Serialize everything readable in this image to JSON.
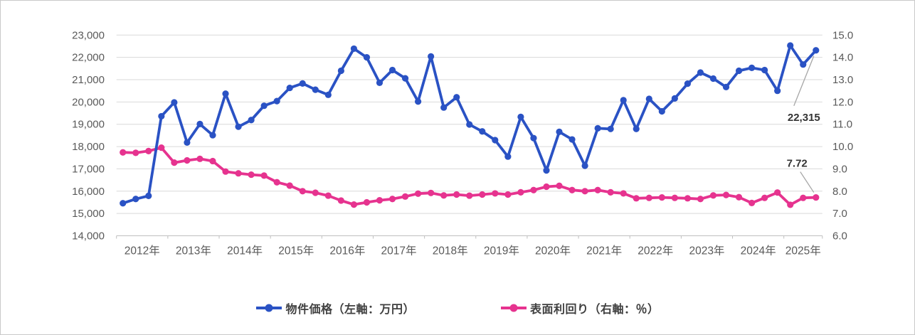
{
  "chart_data": {
    "type": "line",
    "title": "",
    "grid": "horizontal",
    "legend_position": "bottom",
    "x_year_labels": [
      "2012年",
      "2013年",
      "2014年",
      "2015年",
      "2016年",
      "2017年",
      "2018年",
      "2019年",
      "2020年",
      "2021年",
      "2022年",
      "2023年",
      "2024年",
      "2025年"
    ],
    "points_per_year": [
      4,
      4,
      4,
      4,
      4,
      4,
      4,
      4,
      4,
      4,
      4,
      4,
      4,
      3
    ],
    "left_axis": {
      "label": "万円",
      "min": 14000,
      "max": 23000,
      "step": 1000
    },
    "right_axis": {
      "label": "%",
      "min": 6.0,
      "max": 15.0,
      "step": 1.0
    },
    "series": [
      {
        "name": "物件価格（左軸：万円）",
        "axis": "left",
        "color": "#2a52c4",
        "values": [
          15460,
          15650,
          15790,
          19360,
          19980,
          18180,
          19010,
          18510,
          20370,
          18890,
          19190,
          19830,
          20040,
          20630,
          20830,
          20550,
          20320,
          21400,
          22390,
          22000,
          20860,
          21430,
          21060,
          20020,
          22040,
          19750,
          20210,
          18990,
          18680,
          18290,
          17550,
          19330,
          18380,
          16930,
          18660,
          18320,
          17140,
          18820,
          18790,
          20080,
          18790,
          20140,
          19580,
          20160,
          20820,
          21320,
          21050,
          20670,
          21400,
          21530,
          21430,
          20500,
          22530,
          21680,
          22315
        ]
      },
      {
        "name": "表面利回り（右軸：％）",
        "axis": "right",
        "color": "#e6338f",
        "values": [
          9.74,
          9.72,
          9.8,
          9.95,
          9.28,
          9.38,
          9.45,
          9.35,
          8.88,
          8.8,
          8.74,
          8.7,
          8.4,
          8.25,
          8.0,
          7.93,
          7.8,
          7.58,
          7.4,
          7.5,
          7.59,
          7.65,
          7.76,
          7.89,
          7.92,
          7.81,
          7.85,
          7.8,
          7.85,
          7.9,
          7.85,
          7.95,
          8.05,
          8.2,
          8.24,
          8.05,
          8.0,
          8.05,
          7.95,
          7.9,
          7.68,
          7.7,
          7.72,
          7.7,
          7.68,
          7.65,
          7.81,
          7.83,
          7.73,
          7.47,
          7.7,
          7.94,
          7.39,
          7.7,
          7.72
        ]
      }
    ],
    "annotations": [
      {
        "text": "22,315",
        "series": "物件価格（左軸：万円）",
        "point": "last"
      },
      {
        "text": "7.72",
        "series": "表面利回り（右軸：％）",
        "point": "last"
      }
    ]
  },
  "legend": {
    "price_label": "物件価格（左軸：万円）",
    "yield_label": "表面利回り（右軸：％）"
  },
  "colors": {
    "price_line": "#2a52c4",
    "yield_line": "#e6338f",
    "gridline": "#d9d9d9",
    "axis_line": "#bfbfbf",
    "axis_text": "#595959",
    "annotation_text": "#333333",
    "leader_line": "#a6a6a6"
  }
}
